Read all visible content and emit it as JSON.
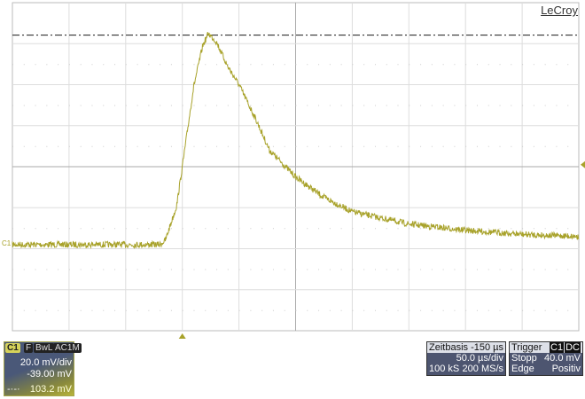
{
  "brand": "LeCroy",
  "channel": {
    "label": "C1",
    "flags": [
      "F",
      "BwL",
      "AC1M"
    ],
    "vdiv": "20.0 mV/div",
    "offset": "-39.00 mV",
    "cursor": "103.2 mV",
    "color": "#a8a22a"
  },
  "timebase": {
    "title": "Zeitbasis",
    "delay": "-150 µs",
    "tdiv": "50.0 µs/div",
    "samples": "100 kS",
    "rate": "200 MS/s"
  },
  "trigger": {
    "title": "Trigger",
    "source": "C1",
    "coupling": "DC",
    "mode": "Stopp",
    "level": "40.0 mV",
    "type": "Edge",
    "slope": "Positiv"
  },
  "chart_data": {
    "type": "line",
    "xlim": [
      -150,
      350
    ],
    "ylim": [
      -41,
      119
    ],
    "x_unit": "µs",
    "y_unit": "mV",
    "grid": true,
    "x_divisions": 10,
    "y_divisions": 8,
    "cursor_level": 103.2,
    "series": [
      {
        "color": "#a8a22a",
        "x": [
          -150,
          -20,
          -15,
          -5,
          0,
          10,
          18,
          23,
          30,
          40,
          50,
          65,
          77,
          100,
          125,
          150,
          200,
          250,
          300,
          350
        ],
        "y": [
          1,
          1,
          3,
          20,
          39,
          78,
          98,
          104,
          100,
          88,
          79,
          62,
          47,
          34,
          24,
          17,
          11,
          8,
          6,
          5
        ]
      }
    ]
  }
}
